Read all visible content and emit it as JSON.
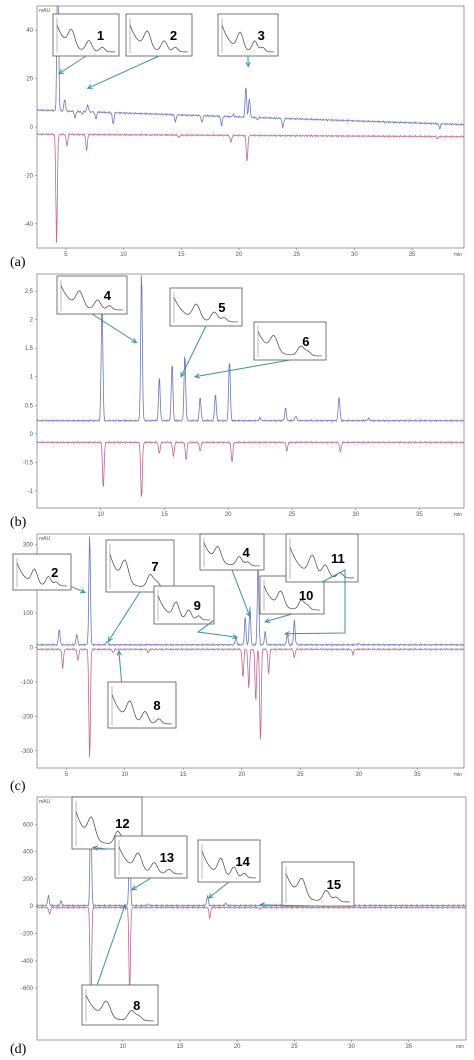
{
  "chart_data": [
    {
      "type": "line",
      "panel_label": "(a)",
      "y_unit": "mAU",
      "x_unit": "min",
      "xlim": [
        2.5,
        39.5
      ],
      "ylim": [
        -50,
        50
      ],
      "x_ticks": [
        5,
        10,
        15,
        20,
        25,
        30,
        35
      ],
      "y_ticks": [
        40,
        20,
        0,
        -20,
        -40
      ],
      "series": [
        {
          "color": "#6b78b8",
          "baseline": 7,
          "baseline_end": 1,
          "peaks": [
            [
              4.3,
              90
            ],
            [
              4.9,
              12
            ],
            [
              5.8,
              4
            ],
            [
              6.4,
              6
            ],
            [
              6.9,
              10
            ],
            [
              7.6,
              4
            ],
            [
              9.1,
              2
            ],
            [
              14.5,
              4
            ],
            [
              16.8,
              4
            ],
            [
              18.5,
              3
            ],
            [
              19.5,
              8
            ],
            [
              20.6,
              20
            ],
            [
              20.9,
              15
            ],
            [
              21.6,
              6
            ],
            [
              23.8,
              3
            ],
            [
              37.4,
              5
            ]
          ]
        },
        {
          "color": "#c06a90",
          "baseline": -3,
          "baseline_end": -4,
          "peaks": [
            [
              4.2,
              -48
            ],
            [
              5.1,
              -8
            ],
            [
              6.8,
              -10
            ],
            [
              14.8,
              -4
            ],
            [
              19.3,
              -6
            ],
            [
              20.7,
              -14
            ],
            [
              23.5,
              -3
            ],
            [
              37.2,
              -4
            ]
          ]
        }
      ],
      "callouts": [
        {
          "label": "1",
          "anchor": [
            4.4,
            22
          ],
          "box_side": "above"
        },
        {
          "label": "2",
          "anchor": [
            6.9,
            16
          ],
          "box_side": "above"
        },
        {
          "label": "3",
          "anchor": [
            20.8,
            25
          ],
          "box_side": "above"
        }
      ]
    },
    {
      "type": "line",
      "panel_label": "(b)",
      "x_unit": "min",
      "xlim": [
        5,
        38.5
      ],
      "ylim": [
        -1.3,
        2.8
      ],
      "x_ticks": [
        10,
        15,
        20,
        25,
        30,
        35
      ],
      "y_ticks": [
        2.5,
        2,
        1.5,
        1,
        0.5,
        0,
        -0.5,
        -1
      ],
      "series": [
        {
          "color": "#6b78b8",
          "baseline": 0.23,
          "peaks": [
            [
              10.1,
              2.4
            ],
            [
              13.2,
              2.85
            ],
            [
              14.6,
              1.0
            ],
            [
              15.6,
              1.25
            ],
            [
              16.6,
              1.4
            ],
            [
              17.8,
              0.65
            ],
            [
              19.0,
              0.7
            ],
            [
              20.1,
              1.3
            ],
            [
              22.5,
              0.28
            ],
            [
              24.5,
              0.45
            ],
            [
              25.3,
              0.32
            ],
            [
              28.7,
              0.65
            ],
            [
              31.0,
              0.27
            ]
          ]
        },
        {
          "color": "#c06a90",
          "baseline": -0.15,
          "peaks": [
            [
              10.2,
              -0.95
            ],
            [
              13.2,
              -1.15
            ],
            [
              14.6,
              -0.35
            ],
            [
              15.7,
              -0.4
            ],
            [
              16.7,
              -0.45
            ],
            [
              17.8,
              -0.3
            ],
            [
              20.3,
              -0.5
            ],
            [
              24.6,
              -0.3
            ],
            [
              28.8,
              -0.32
            ]
          ]
        }
      ],
      "callouts": [
        {
          "label": "4",
          "anchor": [
            12.8,
            1.6
          ],
          "box_side": "above"
        },
        {
          "label": "5",
          "anchor": [
            16.3,
            1.0
          ],
          "box_side": "above"
        },
        {
          "label": "6",
          "anchor": [
            17.4,
            1.0
          ],
          "box_side": "above"
        }
      ]
    },
    {
      "type": "line",
      "panel_label": "(c)",
      "y_unit": "mAU",
      "x_unit": "min",
      "xlim": [
        2.5,
        39
      ],
      "ylim": [
        -350,
        330
      ],
      "x_ticks": [
        5,
        10,
        15,
        20,
        25,
        30,
        35
      ],
      "y_ticks": [
        300,
        200,
        100,
        0,
        -100,
        -200,
        -300
      ],
      "series": [
        {
          "color": "#6b78b8",
          "baseline": 8,
          "peaks": [
            [
              4.4,
              55
            ],
            [
              5.9,
              40
            ],
            [
              7.0,
              330
            ],
            [
              8.5,
              18
            ],
            [
              12.0,
              10
            ],
            [
              19.5,
              30
            ],
            [
              20.3,
              90
            ],
            [
              20.7,
              120
            ],
            [
              21.4,
              250
            ],
            [
              22.0,
              45
            ],
            [
              23.9,
              40
            ],
            [
              24.5,
              80
            ],
            [
              30.0,
              12
            ]
          ]
        },
        {
          "color": "#c06a90",
          "baseline": -5,
          "peaks": [
            [
              4.7,
              -60
            ],
            [
              6.0,
              -40
            ],
            [
              7.0,
              -330
            ],
            [
              9.0,
              -15
            ],
            [
              12.0,
              -15
            ],
            [
              20.1,
              -90
            ],
            [
              20.6,
              -120
            ],
            [
              21.2,
              -160
            ],
            [
              21.6,
              -275
            ],
            [
              22.3,
              -80
            ],
            [
              24.5,
              -30
            ],
            [
              29.5,
              -20
            ]
          ]
        }
      ],
      "callouts": [
        {
          "label": "2",
          "anchor": [
            6.6,
            160
          ],
          "box_side": "left"
        },
        {
          "label": "7",
          "anchor": [
            8.6,
            18
          ],
          "box_side": "above"
        },
        {
          "label": "8",
          "anchor": [
            9.5,
            -10
          ],
          "box_side": "below"
        },
        {
          "label": "9",
          "anchor": [
            19.6,
            30
          ],
          "box_side": "left"
        },
        {
          "label": "4",
          "anchor": [
            20.7,
            90
          ],
          "box_side": "above"
        },
        {
          "label": "10",
          "anchor": [
            22.0,
            75
          ],
          "box_side": "above"
        },
        {
          "label": "11",
          "anchor": [
            23.7,
            40
          ],
          "box_side": "above"
        }
      ]
    },
    {
      "type": "line",
      "panel_label": "(d)",
      "y_unit": "mAU",
      "x_unit": "min",
      "xlim": [
        2.5,
        40
      ],
      "ylim": [
        -980,
        800
      ],
      "x_ticks": [
        10,
        15,
        20,
        25,
        30,
        35
      ],
      "y_ticks": [
        600,
        400,
        200,
        0,
        -200,
        -400,
        -600
      ],
      "series": [
        {
          "color": "#6b78b8",
          "baseline": 5,
          "peaks": [
            [
              3.5,
              80
            ],
            [
              4.6,
              40
            ],
            [
              7.2,
              800
            ],
            [
              10.6,
              600
            ],
            [
              12.2,
              15
            ],
            [
              17.4,
              80
            ],
            [
              19.0,
              20
            ],
            [
              22.2,
              15
            ]
          ]
        },
        {
          "color": "#c06a90",
          "baseline": -10,
          "peaks": [
            [
              3.6,
              -60
            ],
            [
              7.2,
              -880
            ],
            [
              10.6,
              -640
            ],
            [
              17.6,
              -90
            ],
            [
              22.0,
              -20
            ]
          ]
        }
      ],
      "callouts": [
        {
          "label": "12",
          "anchor": [
            7.4,
            430
          ],
          "box_side": "above"
        },
        {
          "label": "13",
          "anchor": [
            10.8,
            120
          ],
          "box_side": "above"
        },
        {
          "label": "14",
          "anchor": [
            17.5,
            60
          ],
          "box_side": "above"
        },
        {
          "label": "15",
          "anchor": [
            22.0,
            10
          ],
          "box_side": "above"
        },
        {
          "label": "8",
          "anchor": [
            10.2,
            10
          ],
          "box_side": "below"
        }
      ]
    }
  ]
}
